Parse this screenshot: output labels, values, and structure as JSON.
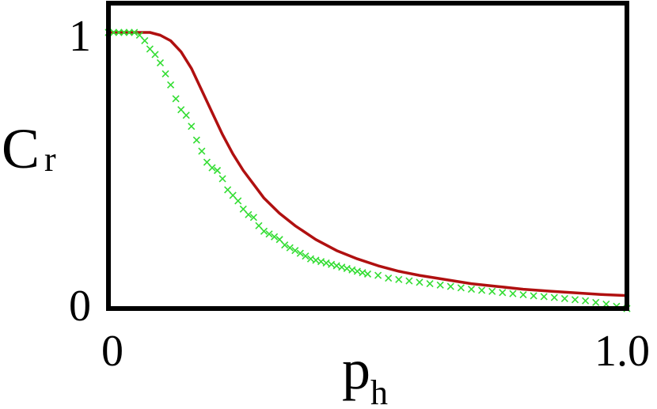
{
  "chart_data": {
    "type": "line",
    "xlabel": "p",
    "xlabel_sub": "h",
    "ylabel": "C",
    "ylabel_sub": "r",
    "xlim": [
      0,
      1.0
    ],
    "ylim": [
      0,
      1
    ],
    "x_ticks": [
      "0",
      "1.0"
    ],
    "y_ticks": [
      "1",
      "0"
    ],
    "grid": false,
    "series": [
      {
        "kind": "line",
        "color": "#b01010",
        "x": [
          0.0,
          0.04,
          0.08,
          0.1,
          0.12,
          0.14,
          0.16,
          0.18,
          0.2,
          0.22,
          0.24,
          0.26,
          0.28,
          0.3,
          0.33,
          0.36,
          0.4,
          0.44,
          0.48,
          0.52,
          0.56,
          0.6,
          0.65,
          0.7,
          0.75,
          0.8,
          0.85,
          0.9,
          0.95,
          1.0
        ],
        "y": [
          1.0,
          1.0,
          1.0,
          0.99,
          0.97,
          0.93,
          0.87,
          0.79,
          0.71,
          0.63,
          0.56,
          0.5,
          0.45,
          0.4,
          0.345,
          0.3,
          0.25,
          0.21,
          0.18,
          0.155,
          0.135,
          0.12,
          0.105,
          0.09,
          0.08,
          0.07,
          0.063,
          0.057,
          0.051,
          0.047
        ]
      },
      {
        "kind": "markers",
        "marker": "x",
        "color": "#33dd33",
        "x": [
          0.0,
          0.01,
          0.02,
          0.03,
          0.04,
          0.05,
          0.06,
          0.07,
          0.08,
          0.09,
          0.1,
          0.11,
          0.12,
          0.13,
          0.14,
          0.15,
          0.16,
          0.17,
          0.18,
          0.19,
          0.2,
          0.21,
          0.22,
          0.23,
          0.24,
          0.25,
          0.26,
          0.27,
          0.28,
          0.29,
          0.3,
          0.31,
          0.32,
          0.33,
          0.34,
          0.35,
          0.36,
          0.37,
          0.38,
          0.39,
          0.4,
          0.41,
          0.42,
          0.43,
          0.44,
          0.45,
          0.46,
          0.47,
          0.48,
          0.49,
          0.5,
          0.52,
          0.54,
          0.56,
          0.58,
          0.6,
          0.62,
          0.64,
          0.66,
          0.68,
          0.7,
          0.72,
          0.74,
          0.76,
          0.78,
          0.8,
          0.82,
          0.84,
          0.86,
          0.88,
          0.9,
          0.92,
          0.94,
          0.96,
          0.98,
          1.0
        ],
        "y": [
          1.0,
          1.0,
          1.0,
          1.0,
          1.0,
          1.0,
          0.99,
          0.97,
          0.94,
          0.92,
          0.89,
          0.85,
          0.81,
          0.76,
          0.72,
          0.7,
          0.66,
          0.61,
          0.57,
          0.53,
          0.51,
          0.5,
          0.47,
          0.43,
          0.41,
          0.39,
          0.36,
          0.34,
          0.33,
          0.3,
          0.28,
          0.27,
          0.26,
          0.25,
          0.23,
          0.22,
          0.21,
          0.2,
          0.19,
          0.18,
          0.175,
          0.17,
          0.165,
          0.16,
          0.155,
          0.15,
          0.145,
          0.14,
          0.135,
          0.13,
          0.125,
          0.12,
          0.11,
          0.105,
          0.1,
          0.095,
          0.09,
          0.085,
          0.08,
          0.075,
          0.07,
          0.066,
          0.062,
          0.058,
          0.054,
          0.05,
          0.046,
          0.043,
          0.04,
          0.036,
          0.032,
          0.028,
          0.022,
          0.016,
          0.008,
          0.0
        ]
      }
    ]
  }
}
